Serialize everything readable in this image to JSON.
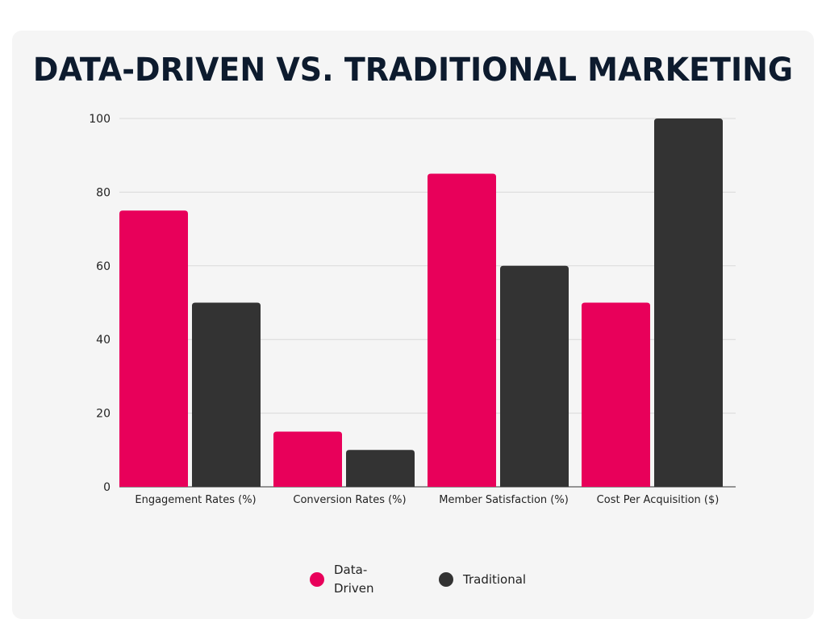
{
  "title": "DATA-DRIVEN VS. TRADITIONAL MARKETING",
  "colors": {
    "data_driven": "#e8005a",
    "traditional": "#333333",
    "gridline": "#d9d9d9",
    "background": "#f5f5f5"
  },
  "legend": {
    "series_1": "Data-Driven",
    "series_2": "Traditional"
  },
  "chart_data": {
    "type": "bar",
    "title": "DATA-DRIVEN VS. TRADITIONAL MARKETING",
    "xlabel": "",
    "ylabel": "",
    "ylim": [
      0,
      100
    ],
    "yticks": [
      0,
      20,
      40,
      60,
      80,
      100
    ],
    "categories": [
      "Engagement Rates (%)",
      "Conversion Rates (%)",
      "Member Satisfaction (%)",
      "Cost Per Acquisition ($)"
    ],
    "series": [
      {
        "name": "Data-Driven",
        "values": [
          75,
          15,
          85,
          50
        ]
      },
      {
        "name": "Traditional",
        "values": [
          50,
          10,
          60,
          100
        ]
      }
    ],
    "grid": true,
    "legend_position": "bottom"
  }
}
